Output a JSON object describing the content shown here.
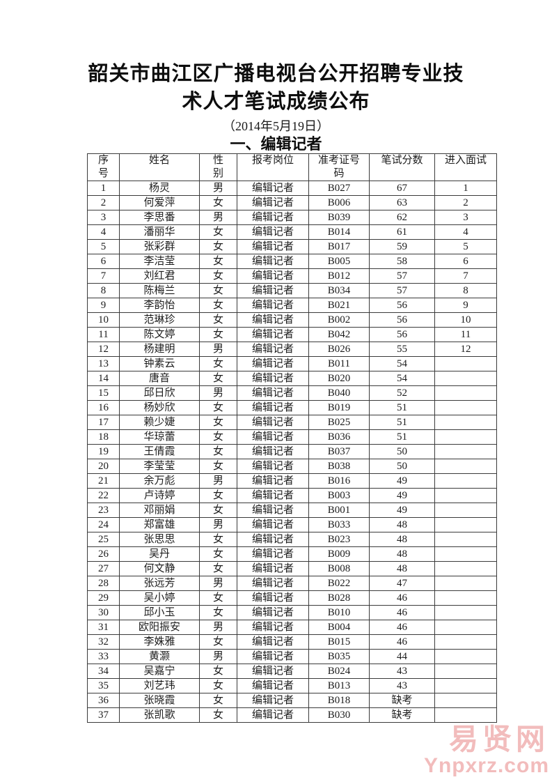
{
  "page": {
    "title_line1": "韶关市曲江区广播电视台公开招聘专业技",
    "title_line2": "术人才笔试成绩公布",
    "date": "（2014年5月19日）",
    "section_heading": "一、编辑记者"
  },
  "table": {
    "headers": [
      "序\n号",
      "姓名",
      "性\n别",
      "报考岗位",
      "准考证号\n码",
      "笔试分数",
      "进入面试"
    ],
    "rows": [
      {
        "no": "1",
        "name": "杨灵",
        "gender": "男",
        "position": "编辑记者",
        "exam_id": "B027",
        "score": "67",
        "interview": "1"
      },
      {
        "no": "2",
        "name": "何爱萍",
        "gender": "女",
        "position": "编辑记者",
        "exam_id": "B006",
        "score": "63",
        "interview": "2"
      },
      {
        "no": "3",
        "name": "李思番",
        "gender": "男",
        "position": "编辑记者",
        "exam_id": "B039",
        "score": "62",
        "interview": "3"
      },
      {
        "no": "4",
        "name": "潘丽华",
        "gender": "女",
        "position": "编辑记者",
        "exam_id": "B014",
        "score": "61",
        "interview": "4"
      },
      {
        "no": "5",
        "name": "张彩群",
        "gender": "女",
        "position": "编辑记者",
        "exam_id": "B017",
        "score": "59",
        "interview": "5"
      },
      {
        "no": "6",
        "name": "李洁莹",
        "gender": "女",
        "position": "编辑记者",
        "exam_id": "B005",
        "score": "58",
        "interview": "6"
      },
      {
        "no": "7",
        "name": "刘红君",
        "gender": "女",
        "position": "编辑记者",
        "exam_id": "B012",
        "score": "57",
        "interview": "7"
      },
      {
        "no": "8",
        "name": "陈梅兰",
        "gender": "女",
        "position": "编辑记者",
        "exam_id": "B034",
        "score": "57",
        "interview": "8"
      },
      {
        "no": "9",
        "name": "李韵怡",
        "gender": "女",
        "position": "编辑记者",
        "exam_id": "B021",
        "score": "56",
        "interview": "9"
      },
      {
        "no": "10",
        "name": "范琳珍",
        "gender": "女",
        "position": "编辑记者",
        "exam_id": "B002",
        "score": "56",
        "interview": "10"
      },
      {
        "no": "11",
        "name": "陈文婷",
        "gender": "女",
        "position": "编辑记者",
        "exam_id": "B042",
        "score": "56",
        "interview": "11"
      },
      {
        "no": "12",
        "name": "杨建明",
        "gender": "男",
        "position": "编辑记者",
        "exam_id": "B026",
        "score": "55",
        "interview": "12"
      },
      {
        "no": "13",
        "name": "钟素云",
        "gender": "女",
        "position": "编辑记者",
        "exam_id": "B011",
        "score": "54",
        "interview": ""
      },
      {
        "no": "14",
        "name": "唐音",
        "gender": "女",
        "position": "编辑记者",
        "exam_id": "B020",
        "score": "54",
        "interview": ""
      },
      {
        "no": "15",
        "name": "邱日欣",
        "gender": "男",
        "position": "编辑记者",
        "exam_id": "B040",
        "score": "52",
        "interview": ""
      },
      {
        "no": "16",
        "name": "杨妙欣",
        "gender": "女",
        "position": "编辑记者",
        "exam_id": "B019",
        "score": "51",
        "interview": ""
      },
      {
        "no": "17",
        "name": "赖少婕",
        "gender": "女",
        "position": "编辑记者",
        "exam_id": "B025",
        "score": "51",
        "interview": ""
      },
      {
        "no": "18",
        "name": "华琼蕾",
        "gender": "女",
        "position": "编辑记者",
        "exam_id": "B036",
        "score": "51",
        "interview": ""
      },
      {
        "no": "19",
        "name": "王倩霞",
        "gender": "女",
        "position": "编辑记者",
        "exam_id": "B037",
        "score": "50",
        "interview": ""
      },
      {
        "no": "20",
        "name": "李莹莹",
        "gender": "女",
        "position": "编辑记者",
        "exam_id": "B038",
        "score": "50",
        "interview": ""
      },
      {
        "no": "21",
        "name": "余万彪",
        "gender": "男",
        "position": "编辑记者",
        "exam_id": "B016",
        "score": "49",
        "interview": ""
      },
      {
        "no": "22",
        "name": "卢诗婷",
        "gender": "女",
        "position": "编辑记者",
        "exam_id": "B003",
        "score": "49",
        "interview": ""
      },
      {
        "no": "23",
        "name": "邓丽娟",
        "gender": "女",
        "position": "编辑记者",
        "exam_id": "B001",
        "score": "49",
        "interview": ""
      },
      {
        "no": "24",
        "name": "郑富雄",
        "gender": "男",
        "position": "编辑记者",
        "exam_id": "B033",
        "score": "48",
        "interview": ""
      },
      {
        "no": "25",
        "name": "张思思",
        "gender": "女",
        "position": "编辑记者",
        "exam_id": "B023",
        "score": "48",
        "interview": ""
      },
      {
        "no": "26",
        "name": "吴丹",
        "gender": "女",
        "position": "编辑记者",
        "exam_id": "B009",
        "score": "48",
        "interview": ""
      },
      {
        "no": "27",
        "name": "何文静",
        "gender": "女",
        "position": "编辑记者",
        "exam_id": "B008",
        "score": "48",
        "interview": ""
      },
      {
        "no": "28",
        "name": "张远芳",
        "gender": "男",
        "position": "编辑记者",
        "exam_id": "B022",
        "score": "47",
        "interview": ""
      },
      {
        "no": "29",
        "name": "吴小婷",
        "gender": "女",
        "position": "编辑记者",
        "exam_id": "B028",
        "score": "46",
        "interview": ""
      },
      {
        "no": "30",
        "name": "邱小玉",
        "gender": "女",
        "position": "编辑记者",
        "exam_id": "B010",
        "score": "46",
        "interview": ""
      },
      {
        "no": "31",
        "name": "欧阳振安",
        "gender": "男",
        "position": "编辑记者",
        "exam_id": "B004",
        "score": "46",
        "interview": ""
      },
      {
        "no": "32",
        "name": "李姝雅",
        "gender": "女",
        "position": "编辑记者",
        "exam_id": "B015",
        "score": "46",
        "interview": ""
      },
      {
        "no": "33",
        "name": "黄灏",
        "gender": "男",
        "position": "编辑记者",
        "exam_id": "B035",
        "score": "44",
        "interview": ""
      },
      {
        "no": "34",
        "name": "吴嘉宁",
        "gender": "女",
        "position": "编辑记者",
        "exam_id": "B024",
        "score": "43",
        "interview": ""
      },
      {
        "no": "35",
        "name": "刘艺玮",
        "gender": "女",
        "position": "编辑记者",
        "exam_id": "B013",
        "score": "43",
        "interview": ""
      },
      {
        "no": "36",
        "name": "张晓霞",
        "gender": "女",
        "position": "编辑记者",
        "exam_id": "B018",
        "score": "缺考",
        "interview": ""
      },
      {
        "no": "37",
        "name": "张凯歌",
        "gender": "女",
        "position": "编辑记者",
        "exam_id": "B030",
        "score": "缺考",
        "interview": ""
      }
    ]
  },
  "watermark": {
    "site_name": "易贤网",
    "site_url": "Ynpxrz.com",
    "color": "#f2bcbc"
  }
}
